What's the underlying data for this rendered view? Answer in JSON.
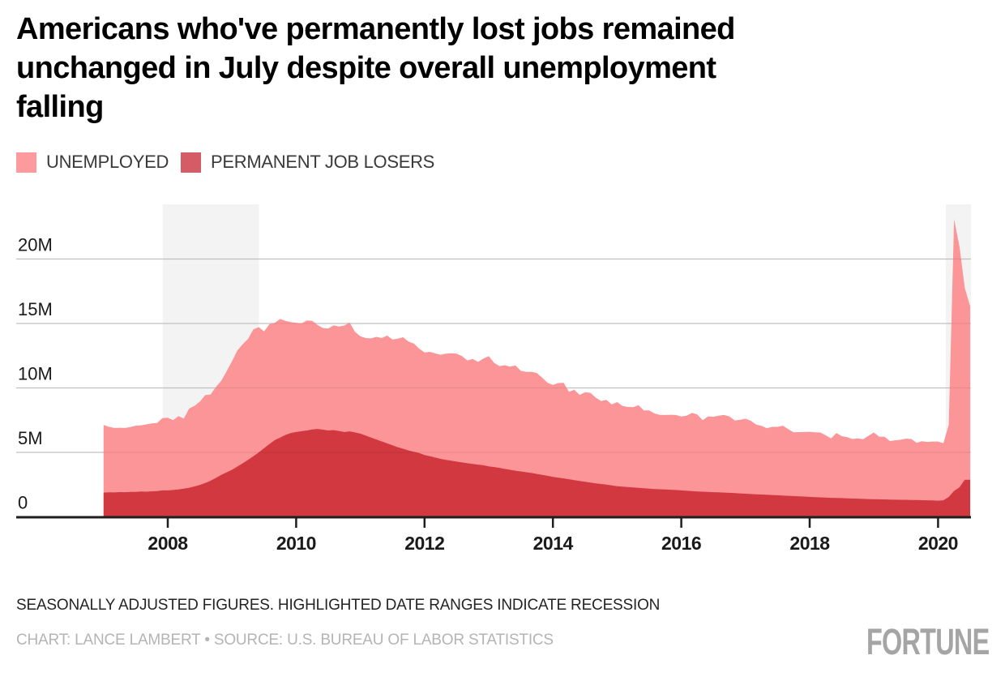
{
  "page": {
    "title_lines": [
      "Americans who've permanently lost jobs remained",
      "unchanged in July despite overall unemployment",
      "falling"
    ],
    "note": "SEASONALLY ADJUSTED FIGURES. HIGHLIGHTED DATE RANGES INDICATE RECESSION",
    "credit": "CHART: LANCE LAMBERT • SOURCE: U.S. BUREAU OF LABOR STATISTICS",
    "brand": "FORTUNE"
  },
  "legend": {
    "items": [
      {
        "label": "UNEMPLOYED",
        "swatch_color": "#FC9A9E"
      },
      {
        "label": "PERMANENT JOB LOSERS",
        "swatch_color": "#D55C66"
      }
    ]
  },
  "chart_data": {
    "type": "area",
    "title": "Americans who've permanently lost jobs remained unchanged in July despite overall unemployment falling",
    "unit": "persons, millions",
    "x_start_year": 2007,
    "x_start_month": 1,
    "x_interval": "monthly",
    "x_end_label": "July 2020",
    "xlim": [
      2007.0,
      2020.58
    ],
    "ylim": [
      0,
      24
    ],
    "grid": true,
    "legend_position": "top-left",
    "band_color": "#F3F3F3",
    "grid_color": "#CFCFCF",
    "axis_color": "#1F1F1F",
    "recession_bands": [
      [
        2007.92,
        2009.42
      ],
      [
        2020.12,
        2020.58
      ]
    ],
    "y_ticks": [
      {
        "value": 0,
        "label": "0"
      },
      {
        "value": 5,
        "label": "5M"
      },
      {
        "value": 10,
        "label": "10M"
      },
      {
        "value": 15,
        "label": "15M"
      },
      {
        "value": 20,
        "label": "20M"
      }
    ],
    "x_ticks": [
      2008,
      2010,
      2012,
      2014,
      2016,
      2018,
      2020
    ],
    "series": [
      {
        "name": "UNEMPLOYED",
        "color": "#FB9598",
        "values": [
          7.13,
          6.98,
          6.89,
          6.91,
          6.89,
          6.96,
          7.07,
          7.1,
          7.17,
          7.25,
          7.28,
          7.66,
          7.69,
          7.5,
          7.82,
          7.63,
          8.4,
          8.61,
          8.94,
          9.44,
          9.49,
          10.07,
          10.56,
          11.29,
          12.06,
          12.9,
          13.39,
          13.8,
          14.54,
          14.72,
          14.39,
          14.94,
          15.05,
          15.35,
          15.21,
          15.1,
          15.05,
          15.0,
          15.24,
          15.21,
          14.88,
          14.65,
          14.61,
          14.86,
          14.77,
          14.84,
          15.06,
          14.35,
          14.01,
          13.87,
          13.84,
          13.96,
          13.87,
          14.06,
          13.76,
          13.82,
          13.93,
          13.6,
          13.44,
          13.05,
          12.75,
          12.8,
          12.68,
          12.57,
          12.66,
          12.69,
          12.66,
          12.47,
          12.13,
          12.25,
          12.02,
          12.27,
          12.47,
          11.95,
          11.69,
          11.76,
          11.65,
          11.75,
          11.33,
          11.24,
          11.25,
          11.16,
          10.79,
          10.4,
          10.23,
          10.38,
          10.4,
          9.7,
          9.86,
          9.46,
          9.66,
          9.62,
          9.25,
          8.99,
          9.07,
          8.72,
          8.9,
          8.61,
          8.52,
          8.51,
          8.66,
          8.25,
          8.25,
          8.02,
          7.91,
          7.9,
          7.92,
          7.9,
          7.78,
          7.84,
          8.06,
          7.94,
          7.49,
          7.79,
          7.76,
          7.85,
          7.9,
          7.79,
          7.48,
          7.53,
          7.61,
          7.45,
          7.15,
          7.06,
          6.87,
          6.98,
          6.98,
          7.07,
          6.8,
          6.56,
          6.57,
          6.58,
          6.6,
          6.56,
          6.54,
          6.32,
          6.08,
          6.5,
          6.26,
          6.18,
          6.04,
          6.08,
          6.02,
          6.29,
          6.54,
          6.22,
          6.21,
          5.88,
          5.94,
          5.98,
          6.06,
          6.04,
          5.75,
          5.86,
          5.81,
          5.84,
          5.84,
          5.72,
          7.14,
          23.08,
          20.98,
          17.75,
          16.34
        ]
      },
      {
        "name": "PERMANENT JOB LOSERS",
        "color": "#D23840",
        "values": [
          1.88,
          1.9,
          1.89,
          1.92,
          1.91,
          1.94,
          1.93,
          1.96,
          1.95,
          1.98,
          2.0,
          2.05,
          2.05,
          2.08,
          2.12,
          2.18,
          2.26,
          2.36,
          2.48,
          2.62,
          2.8,
          3.02,
          3.25,
          3.45,
          3.65,
          3.9,
          4.15,
          4.42,
          4.7,
          5.0,
          5.32,
          5.65,
          5.95,
          6.15,
          6.35,
          6.5,
          6.58,
          6.64,
          6.7,
          6.78,
          6.82,
          6.76,
          6.7,
          6.73,
          6.66,
          6.58,
          6.63,
          6.55,
          6.45,
          6.3,
          6.15,
          6.0,
          5.85,
          5.7,
          5.55,
          5.4,
          5.28,
          5.15,
          5.05,
          4.95,
          4.8,
          4.7,
          4.6,
          4.5,
          4.42,
          4.35,
          4.28,
          4.22,
          4.16,
          4.1,
          4.05,
          4.0,
          3.92,
          3.86,
          3.8,
          3.72,
          3.65,
          3.58,
          3.52,
          3.46,
          3.4,
          3.33,
          3.26,
          3.18,
          3.1,
          3.04,
          2.98,
          2.92,
          2.85,
          2.78,
          2.72,
          2.66,
          2.6,
          2.55,
          2.5,
          2.44,
          2.38,
          2.34,
          2.31,
          2.28,
          2.25,
          2.22,
          2.19,
          2.16,
          2.14,
          2.12,
          2.1,
          2.08,
          2.05,
          2.02,
          2.0,
          1.97,
          1.95,
          1.93,
          1.91,
          1.9,
          1.88,
          1.86,
          1.84,
          1.82,
          1.79,
          1.77,
          1.75,
          1.73,
          1.71,
          1.69,
          1.67,
          1.65,
          1.63,
          1.61,
          1.59,
          1.57,
          1.55,
          1.53,
          1.51,
          1.49,
          1.47,
          1.46,
          1.45,
          1.43,
          1.42,
          1.41,
          1.39,
          1.38,
          1.37,
          1.36,
          1.35,
          1.34,
          1.33,
          1.32,
          1.32,
          1.31,
          1.3,
          1.29,
          1.28,
          1.27,
          1.25,
          1.28,
          1.54,
          2.01,
          2.29,
          2.88,
          2.88
        ]
      }
    ]
  }
}
